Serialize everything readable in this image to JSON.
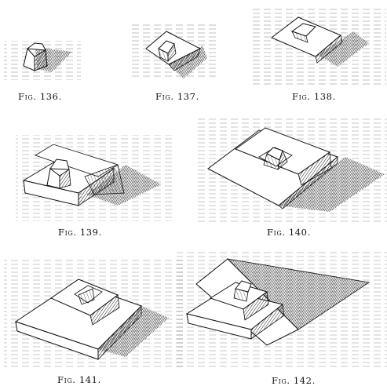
{
  "figures": [
    {
      "id": "136",
      "caption": "Fig. 136."
    },
    {
      "id": "137",
      "caption": "Fig. 137."
    },
    {
      "id": "138",
      "caption": "Fig. 138."
    },
    {
      "id": "139",
      "caption": "Fig. 139."
    },
    {
      "id": "140",
      "caption": "Fig. 140."
    },
    {
      "id": "141",
      "caption": "Fig. 141."
    },
    {
      "id": "142",
      "caption": "Fig. 142."
    }
  ]
}
